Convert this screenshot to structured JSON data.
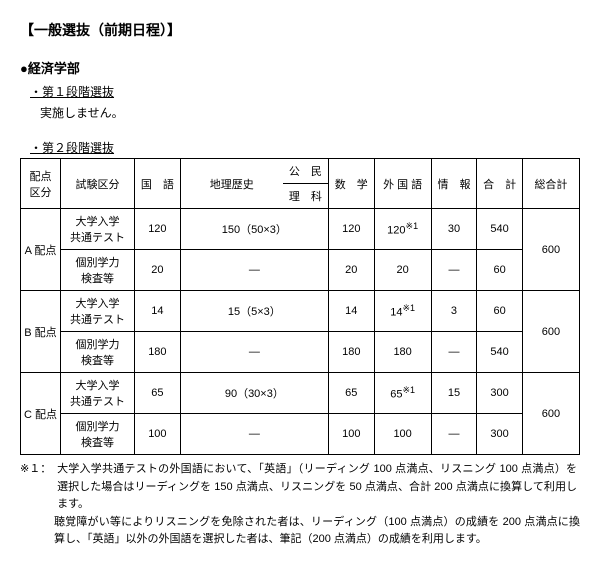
{
  "title": "【一般選抜（前期日程）】",
  "faculty": "●経済学部",
  "stage1": {
    "label": "・第１段階選抜",
    "text": "実施しません。"
  },
  "stage2": {
    "label": "・第２段階選抜"
  },
  "headers": {
    "haiten": "配点\n区分",
    "shiken": "試験区分",
    "kokugo": "国　語",
    "chireki": "地理歴史",
    "koumin": "公　民",
    "rika": "理　科",
    "suugaku": "数　学",
    "gaikoku": "外 国 語",
    "jouhou": "情　報",
    "goukei": "合　計",
    "sougou": "総合計"
  },
  "row_labels": {
    "kyoutsuu": "大学入学\n共通テスト",
    "kobetsu": "個別学力\n検査等"
  },
  "groups": [
    {
      "name": "A 配点",
      "kyoutsuu": {
        "kokugo": "120",
        "chiri_koumin_rika": "150（50×3）",
        "suugaku": "120",
        "gaikoku": "120",
        "gaikoku_sup": "※1",
        "jouhou": "30",
        "goukei": "540"
      },
      "kobetsu": {
        "kokugo": "20",
        "chiri_koumin_rika": "―",
        "suugaku": "20",
        "gaikoku": "20",
        "jouhou": "―",
        "goukei": "60"
      },
      "sougou": "600"
    },
    {
      "name": "B 配点",
      "kyoutsuu": {
        "kokugo": "14",
        "chiri_koumin_rika": "15（5×3）",
        "suugaku": "14",
        "gaikoku": "14",
        "gaikoku_sup": "※1",
        "jouhou": "3",
        "goukei": "60"
      },
      "kobetsu": {
        "kokugo": "180",
        "chiri_koumin_rika": "―",
        "suugaku": "180",
        "gaikoku": "180",
        "jouhou": "―",
        "goukei": "540"
      },
      "sougou": "600"
    },
    {
      "name": "C 配点",
      "kyoutsuu": {
        "kokugo": "65",
        "chiri_koumin_rika": "90（30×3）",
        "suugaku": "65",
        "gaikoku": "65",
        "gaikoku_sup": "※1",
        "jouhou": "15",
        "goukei": "300"
      },
      "kobetsu": {
        "kokugo": "100",
        "chiri_koumin_rika": "―",
        "suugaku": "100",
        "gaikoku": "100",
        "jouhou": "―",
        "goukei": "300"
      },
      "sougou": "600"
    }
  ],
  "note": {
    "label": "※１：",
    "para1": "大学入学共通テストの外国語において、「英語」（リーディング 100 点満点、リスニング 100 点満点）を選択した場合はリーディングを 150 点満点、リスニングを 50 点満点、合計 200 点満点に換算して利用します。",
    "para2": "聴覚障がい等によりリスニングを免除された者は、リーディング（100 点満点）の成績を 200 点満点に換算し、「英語」以外の外国語を選択した者は、筆記（200 点満点）の成績を利用します。"
  }
}
